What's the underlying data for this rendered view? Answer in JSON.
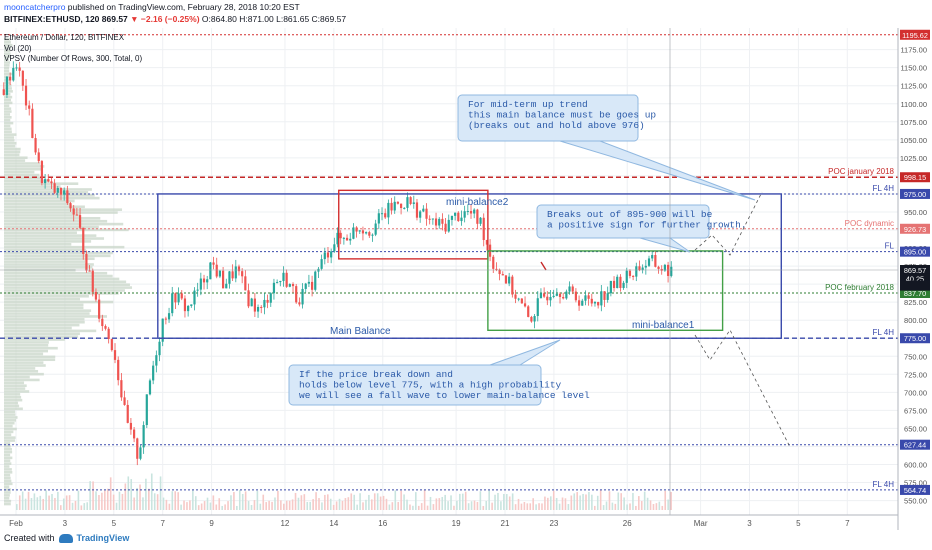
{
  "header": {
    "author": "mooncatcherpro",
    "published": "published on TradingView.com, February 28, 2018 10:20 EST",
    "symbol": "BITFINEX:ETHUSD, 120",
    "close": "869.57",
    "change": "▼ −2.16 (−0.25%)",
    "ohlc": "O:864.80 H:871.00 L:861.65 C:869.57",
    "title": "Ethereum / Dollar, 120, BITFINEX",
    "vol": "Vol (20)",
    "vpsv": "VPSV (Number Of Rows, 300, Total, 0)"
  },
  "footer": {
    "created_with": "Created with",
    "brand": "TradingView"
  },
  "colors": {
    "up": "#26a69a",
    "down": "#ef5350",
    "red": "#d32f2f",
    "blue": "#3949ab",
    "green": "#43a047",
    "pink": "#ef9a9a",
    "callout_bg": "#d8e8f8",
    "callout_border": "#90b8e0",
    "callout_text": "#2b5aa8"
  },
  "chart_data": {
    "type": "candlestick",
    "symbol": "ETHUSD",
    "timeframe": "120",
    "ylim": [
      530,
      1205
    ],
    "y_ticks": [
      550,
      575,
      600,
      625,
      650,
      675,
      700,
      725,
      750,
      775,
      800,
      825,
      850,
      875,
      900,
      925,
      950,
      975,
      1000,
      1025,
      1050,
      1075,
      1100,
      1125,
      1150,
      1175
    ],
    "x_ticks": [
      {
        "label": "Feb",
        "day": 1
      },
      {
        "label": "3",
        "day": 3
      },
      {
        "label": "5",
        "day": 5
      },
      {
        "label": "7",
        "day": 7
      },
      {
        "label": "9",
        "day": 9
      },
      {
        "label": "12",
        "day": 12
      },
      {
        "label": "14",
        "day": 14
      },
      {
        "label": "16",
        "day": 16
      },
      {
        "label": "19",
        "day": 19
      },
      {
        "label": "21",
        "day": 21
      },
      {
        "label": "23",
        "day": 23
      },
      {
        "label": "26",
        "day": 26
      },
      {
        "label": "Mar",
        "day": 29
      },
      {
        "label": "3",
        "day": 31
      },
      {
        "label": "5",
        "day": 33
      },
      {
        "label": "7",
        "day": 35
      }
    ],
    "price_path": [
      {
        "day": 0.5,
        "price": 1120
      },
      {
        "day": 1,
        "price": 1160
      },
      {
        "day": 1.5,
        "price": 1090
      },
      {
        "day": 2,
        "price": 1000
      },
      {
        "day": 2.5,
        "price": 980
      },
      {
        "day": 3,
        "price": 970
      },
      {
        "day": 3.5,
        "price": 940
      },
      {
        "day": 4,
        "price": 860
      },
      {
        "day": 4.5,
        "price": 800
      },
      {
        "day": 5,
        "price": 760
      },
      {
        "day": 5.5,
        "price": 660
      },
      {
        "day": 6,
        "price": 610
      },
      {
        "day": 6.5,
        "price": 720
      },
      {
        "day": 7,
        "price": 800
      },
      {
        "day": 7.5,
        "price": 835
      },
      {
        "day": 8,
        "price": 815
      },
      {
        "day": 8.5,
        "price": 845
      },
      {
        "day": 9,
        "price": 880
      },
      {
        "day": 9.5,
        "price": 850
      },
      {
        "day": 10,
        "price": 870
      },
      {
        "day": 10.5,
        "price": 830
      },
      {
        "day": 11,
        "price": 810
      },
      {
        "day": 11.5,
        "price": 850
      },
      {
        "day": 12,
        "price": 860
      },
      {
        "day": 12.5,
        "price": 830
      },
      {
        "day": 13,
        "price": 845
      },
      {
        "day": 13.5,
        "price": 880
      },
      {
        "day": 14,
        "price": 910
      },
      {
        "day": 14.5,
        "price": 915
      },
      {
        "day": 15,
        "price": 930
      },
      {
        "day": 15.5,
        "price": 925
      },
      {
        "day": 16,
        "price": 945
      },
      {
        "day": 16.5,
        "price": 960
      },
      {
        "day": 17,
        "price": 965
      },
      {
        "day": 17.5,
        "price": 950
      },
      {
        "day": 18,
        "price": 935
      },
      {
        "day": 18.5,
        "price": 930
      },
      {
        "day": 19,
        "price": 945
      },
      {
        "day": 19.5,
        "price": 950
      },
      {
        "day": 20,
        "price": 935
      },
      {
        "day": 20.5,
        "price": 880
      },
      {
        "day": 21,
        "price": 860
      },
      {
        "day": 21.5,
        "price": 830
      },
      {
        "day": 22,
        "price": 800
      },
      {
        "day": 22.5,
        "price": 830
      },
      {
        "day": 23,
        "price": 845
      },
      {
        "day": 23.5,
        "price": 840
      },
      {
        "day": 24,
        "price": 830
      },
      {
        "day": 24.5,
        "price": 825
      },
      {
        "day": 25,
        "price": 835
      },
      {
        "day": 25.5,
        "price": 850
      },
      {
        "day": 26,
        "price": 860
      },
      {
        "day": 26.5,
        "price": 875
      },
      {
        "day": 27,
        "price": 880
      },
      {
        "day": 27.5,
        "price": 870
      },
      {
        "day": 27.8,
        "price": 869.57
      }
    ],
    "levels": [
      {
        "price": 1195.62,
        "label": "1195.62",
        "color": "#d32f2f",
        "style": "dotted"
      },
      {
        "price": 998.15,
        "label": "998.15",
        "text": "POC january 2018",
        "color": "#c62828",
        "style": "dashed"
      },
      {
        "price": 975.0,
        "label": "975.00",
        "text": "FL 4H",
        "color": "#3949ab",
        "style": "dotted"
      },
      {
        "price": 926.73,
        "label": "926.73",
        "text": "POC dynamic",
        "color": "#e57373",
        "style": "dotted"
      },
      {
        "price": 895.0,
        "label": "895.00",
        "text": "FL",
        "color": "#3949ab",
        "style": "dotted"
      },
      {
        "price": 837.7,
        "label": "837.70",
        "text": "POC february 2018",
        "color": "#2e7d32",
        "style": "dotted"
      },
      {
        "price": 775.0,
        "label": "775.00",
        "text": "FL 4H",
        "color": "#3949ab",
        "style": "dashed"
      },
      {
        "price": 627.44,
        "label": "627.44",
        "color": "#3949ab",
        "style": "dotted"
      },
      {
        "price": 564.74,
        "label": "564.74",
        "text": "FL 4H",
        "color": "#3949ab",
        "style": "dotted"
      }
    ],
    "price_badges": [
      {
        "price": 869.57,
        "label": "869.57",
        "color": "#131722"
      },
      {
        "price": 858,
        "label": "40.25",
        "color": "#131722"
      },
      {
        "price": 848,
        "label": "",
        "color": "#131722"
      }
    ],
    "boxes": [
      {
        "label": "Main  Balance",
        "color": "#3949ab",
        "day_from": 6.8,
        "day_to": 32.3,
        "price_from": 775,
        "price_to": 975
      },
      {
        "label": "mini-balance2",
        "color": "#d32f2f",
        "day_from": 14.2,
        "day_to": 20.3,
        "price_from": 885,
        "price_to": 980
      },
      {
        "label": "mini-balance1",
        "color": "#43a047",
        "day_from": 20.3,
        "day_to": 29.9,
        "price_from": 786,
        "price_to": 896
      }
    ],
    "callouts": [
      {
        "lines": [
          "For mid-term up trend",
          "this main balance must be goes up",
          "(breaks out and hold above 976)"
        ]
      },
      {
        "lines": [
          "Breaks out of 895-900 will be",
          "a positive sign for further growth."
        ]
      },
      {
        "lines": [
          "If the price break down and",
          "holds below  level 775, with a high probability",
          "we will see a fall wave to lower main-balance level"
        ]
      }
    ]
  }
}
